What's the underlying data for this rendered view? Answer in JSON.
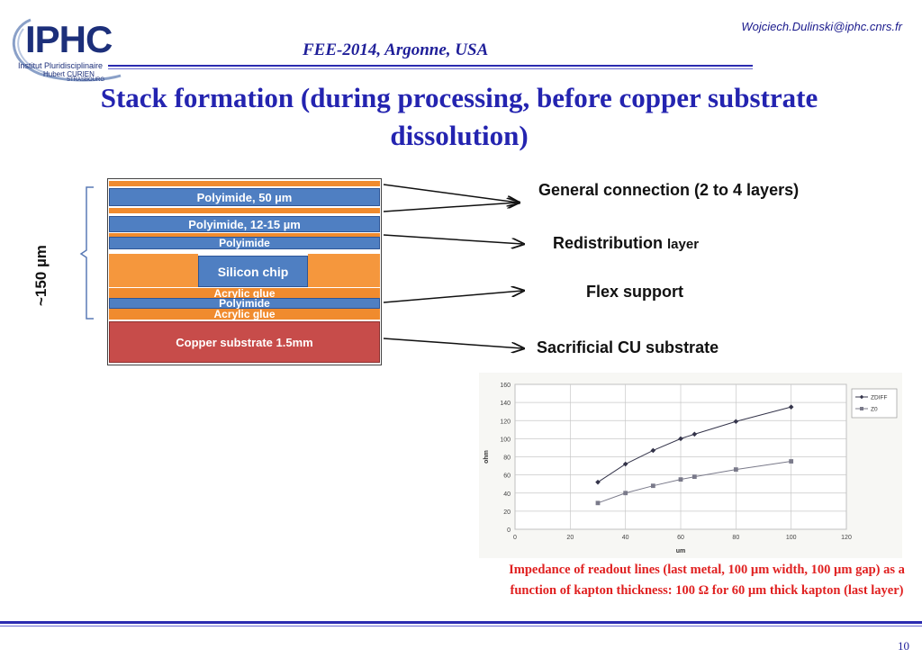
{
  "header": {
    "email": "Wojciech.Dulinski@iphc.cnrs.fr",
    "conference": "FEE-2014, Argonne, USA",
    "logo_main": "IPHC",
    "logo_sub1": "Institut Pluridisciplinaire",
    "logo_sub2": "Hubert CURIEN",
    "logo_sub3": "STRASBOURG"
  },
  "title": "Stack formation (during processing, before copper substrate dissolution)",
  "stack": {
    "layers": {
      "polyimide_50": "Polyimide, 50 µm",
      "polyimide_12": "Polyimide, 12-15 µm",
      "polyimide_top": "Polyimide",
      "silicon": "Silicon chip",
      "acrylic1": "Acrylic glue",
      "polyimide_mid": "Polyimide",
      "acrylic2": "Acrylic glue",
      "copper": "Copper substrate 1.5mm"
    },
    "thickness_label": "~150 µm"
  },
  "labels": {
    "general": "General connection (2 to 4 layers)",
    "redistribution": "Redistribution",
    "redistribution_suffix": "layer",
    "flex": "Flex support",
    "sacrificial": "Sacrificial CU substrate"
  },
  "colors": {
    "title": "#2424b0",
    "polyimide": "#4f7fc2",
    "glue": "#f08b2e",
    "copper": "#c74c4a",
    "caption": "#e02020"
  },
  "chart_data": {
    "type": "line",
    "xlabel": "um",
    "ylabel": "ohm",
    "xlim": [
      0,
      120
    ],
    "ylim": [
      0,
      160
    ],
    "xticks": [
      0,
      20,
      40,
      60,
      80,
      100,
      120
    ],
    "yticks": [
      0,
      20,
      40,
      60,
      80,
      100,
      120,
      140,
      160
    ],
    "grid": true,
    "legend": "top-right",
    "series": [
      {
        "name": "ZDIFF",
        "x": [
          30,
          40,
          50,
          60,
          65,
          80,
          100
        ],
        "values": [
          52,
          72,
          87,
          100,
          105,
          119,
          135
        ],
        "marker": "diamond",
        "color": "#34344a"
      },
      {
        "name": "Z0",
        "x": [
          30,
          40,
          50,
          60,
          65,
          80,
          100
        ],
        "values": [
          29,
          40,
          48,
          55,
          58,
          66,
          75
        ],
        "marker": "square",
        "color": "#7a7a8a"
      }
    ]
  },
  "caption": "Impedance of readout lines (last metal, 100 µm width, 100 µm gap) as a function of kapton thickness: 100 Ω for 60 µm thick kapton (last layer)",
  "page_number": "10"
}
